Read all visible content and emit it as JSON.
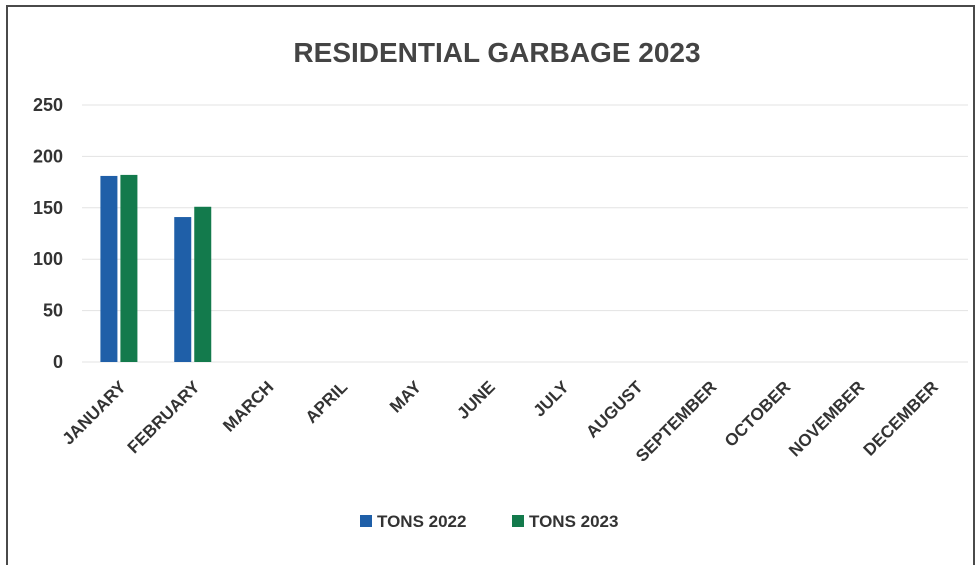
{
  "chart_data": {
    "type": "bar",
    "title": "RESIDENTIAL GARBAGE 2023",
    "xlabel": "",
    "ylabel": "",
    "categories": [
      "JANUARY",
      "FEBRUARY",
      "MARCH",
      "APRIL",
      "MAY",
      "JUNE",
      "JULY",
      "AUGUST",
      "SEPTEMBER",
      "OCTOBER",
      "NOVEMBER",
      "DECEMBER"
    ],
    "series": [
      {
        "name": "TONS 2022",
        "color": "#1f5fa8",
        "values": [
          181,
          141,
          null,
          null,
          null,
          null,
          null,
          null,
          null,
          null,
          null,
          null
        ]
      },
      {
        "name": "TONS 2023",
        "color": "#137a4c",
        "values": [
          182,
          151,
          null,
          null,
          null,
          null,
          null,
          null,
          null,
          null,
          null,
          null
        ]
      }
    ],
    "ylim": [
      0,
      250
    ],
    "yticks": [
      0,
      50,
      100,
      150,
      200,
      250
    ],
    "grid": true,
    "legend_position": "bottom"
  }
}
